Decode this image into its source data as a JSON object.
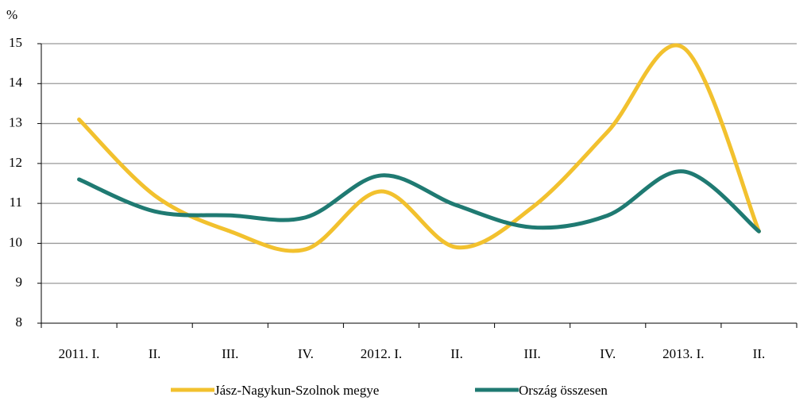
{
  "chart_data": {
    "type": "line",
    "y_label": "%",
    "categories": [
      "2011. I.",
      "II.",
      "III.",
      "IV.",
      "2012. I.",
      "II.",
      "III.",
      "IV.",
      "2013. I.",
      "II."
    ],
    "series": [
      {
        "name": "Jász-Nagykun-Szolnok megye",
        "color": "#f2c12e",
        "values": [
          13.1,
          11.2,
          10.3,
          9.85,
          11.3,
          9.9,
          10.9,
          12.8,
          14.9,
          10.3
        ]
      },
      {
        "name": "Ország összesen",
        "color": "#1f7a72",
        "values": [
          11.6,
          10.8,
          10.7,
          10.65,
          11.7,
          10.95,
          10.4,
          10.7,
          11.8,
          10.3
        ]
      }
    ],
    "ylim": [
      8,
      15
    ],
    "yticks": [
      8,
      9,
      10,
      11,
      12,
      13,
      14,
      15
    ],
    "grid": true,
    "legend": "bottom"
  }
}
